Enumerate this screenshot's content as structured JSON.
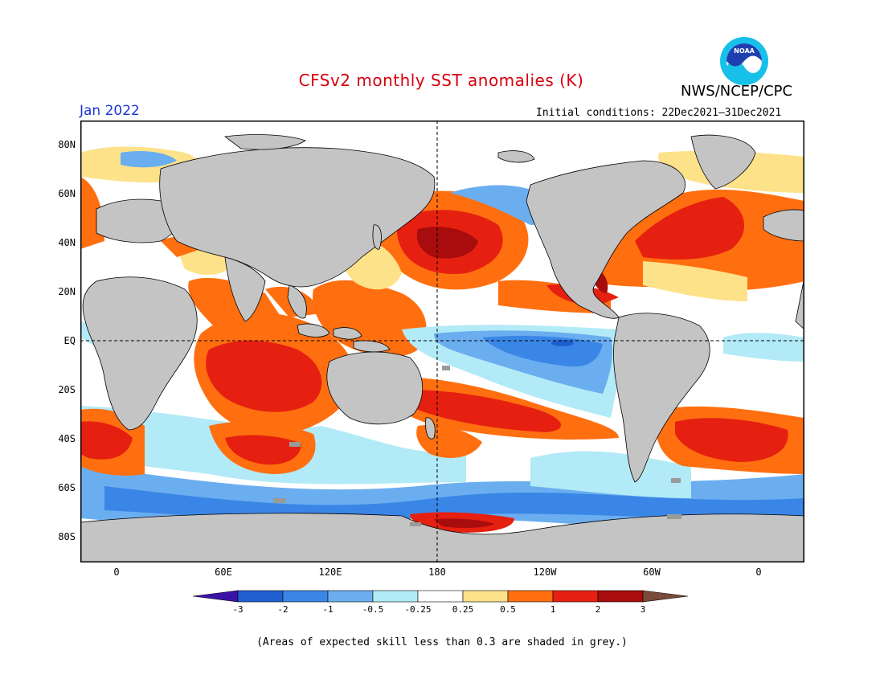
{
  "title": "CFSv2 monthly SST anomalies (K)",
  "agency": "NWS/NCEP/CPC",
  "logo_text": "NOAA",
  "month": "Jan 2022",
  "initial_conditions": "Initial conditions: 22Dec2021–31Dec2021",
  "footnote": "(Areas of expected skill less than 0.3 are shaded in grey.)",
  "lat_labels": [
    "80N",
    "60N",
    "40N",
    "20N",
    "EQ",
    "20S",
    "40S",
    "60S",
    "80S"
  ],
  "lon_labels": [
    "0",
    "60E",
    "120E",
    "180",
    "120W",
    "60W",
    "0"
  ],
  "colorbar": {
    "levels": [
      "-3",
      "-2",
      "-1",
      "-0.5",
      "-0.25",
      "0.25",
      "0.5",
      "1",
      "2",
      "3"
    ],
    "colors": [
      "#3a14a8",
      "#1f5fd0",
      "#3a86e6",
      "#6aaef0",
      "#b2eaf7",
      "#ffffff",
      "#fde28a",
      "#ff6f10",
      "#e62010",
      "#a80c0c",
      "#7a4a3a"
    ]
  },
  "map_colors": {
    "land": "#c4c4c4",
    "skill_grey": "#9a9a9a",
    "ocean_neutral": "#ffffff"
  }
}
